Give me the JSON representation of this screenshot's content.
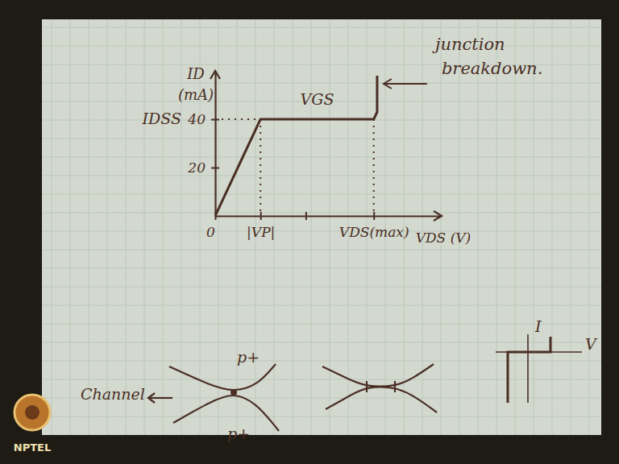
{
  "chart_data": {
    "type": "line",
    "x_label": "VDS (V)",
    "y_label": "ID (mA)",
    "xlim": [
      0,
      20
    ],
    "ylim": [
      0,
      60
    ],
    "xticks": [
      0,
      {
        "value": 4,
        "label": "|VP|"
      },
      {
        "value": 8,
        "label": null
      },
      {
        "value": 14,
        "label": "VDS(max)"
      }
    ],
    "yticks": [
      20,
      40
    ],
    "grid": false,
    "color": "#4a2e24",
    "x": [
      0,
      4,
      14,
      14.3,
      14.3
    ],
    "values": [
      0,
      40,
      40,
      43,
      58
    ],
    "annotations": [
      "VGS",
      "IDSS",
      "junction breakdown."
    ]
  },
  "sketches": {
    "pinch_off": {
      "top": "p+",
      "bottom": "p+",
      "channel": "Channel"
    },
    "diode": {
      "y_label": "I",
      "x_label": "V"
    }
  },
  "watermark": "NPTEL"
}
